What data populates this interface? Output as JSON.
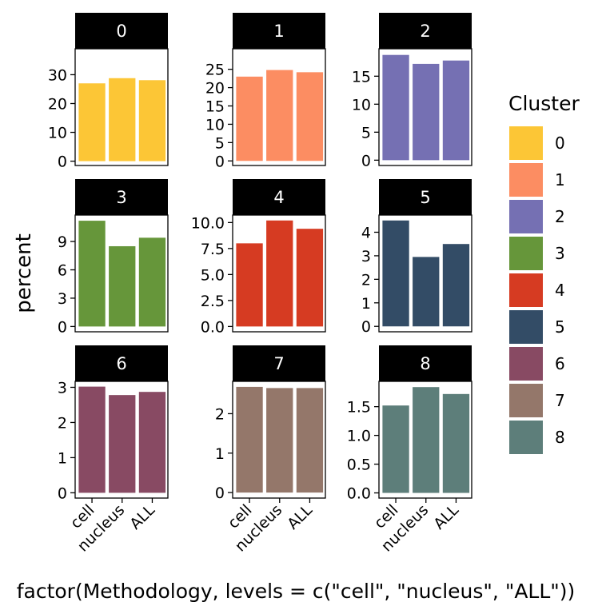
{
  "chart_data": {
    "type": "bar",
    "facet_by": "Cluster",
    "categories": [
      "cell",
      "nucleus",
      "ALL"
    ],
    "ylabel": "percent",
    "xlabel": "factor(Methodology, levels = c(\"cell\", \"nucleus\", \"ALL\"))",
    "legend": {
      "title": "Cluster",
      "position": "right"
    },
    "panels": [
      {
        "label": "0",
        "color": "#FCC636",
        "values": [
          27.0,
          28.8,
          28.1
        ],
        "ticks": [
          0,
          10,
          20,
          30
        ],
        "tick_labels": [
          "0",
          "10",
          "20",
          "30"
        ],
        "ylim": [
          -1.5,
          39
        ]
      },
      {
        "label": "1",
        "color": "#FC8D62",
        "values": [
          23.0,
          24.8,
          24.2
        ],
        "ticks": [
          0,
          5,
          10,
          15,
          20,
          25
        ],
        "tick_labels": [
          "0",
          "5",
          "10",
          "15",
          "20",
          "25"
        ],
        "ylim": [
          -1.25,
          30.6
        ]
      },
      {
        "label": "2",
        "color": "#7570B3",
        "values": [
          18.8,
          17.2,
          17.8
        ],
        "ticks": [
          0,
          5,
          10,
          15
        ],
        "tick_labels": [
          "0",
          "5",
          "10",
          "15"
        ],
        "ylim": [
          -0.95,
          19.9
        ]
      },
      {
        "label": "3",
        "color": "#66963A",
        "values": [
          11.2,
          8.5,
          9.4
        ],
        "ticks": [
          0,
          3,
          6,
          9
        ],
        "tick_labels": [
          "0",
          "3",
          "6",
          "9"
        ],
        "ylim": [
          -0.56,
          11.8
        ]
      },
      {
        "label": "4",
        "color": "#D63B22",
        "values": [
          8.0,
          10.2,
          9.4
        ],
        "ticks": [
          0,
          2.5,
          5,
          7.5,
          10
        ],
        "tick_labels": [
          "0.0",
          "2.5",
          "5.0",
          "7.5",
          "10.0"
        ],
        "ylim": [
          -0.51,
          10.72
        ]
      },
      {
        "label": "5",
        "color": "#334C66",
        "values": [
          4.5,
          2.95,
          3.5
        ],
        "ticks": [
          0,
          1,
          2,
          3,
          4
        ],
        "tick_labels": [
          "0",
          "1",
          "2",
          "3",
          "4"
        ],
        "ylim": [
          -0.23,
          4.73
        ]
      },
      {
        "label": "6",
        "color": "#884A63",
        "values": [
          3.02,
          2.78,
          2.87
        ],
        "ticks": [
          0,
          1,
          2,
          3
        ],
        "tick_labels": [
          "0",
          "1",
          "2",
          "3"
        ],
        "ylim": [
          -0.15,
          3.17
        ]
      },
      {
        "label": "7",
        "color": "#94776A",
        "values": [
          2.68,
          2.65,
          2.65
        ],
        "ticks": [
          0,
          1,
          2
        ],
        "tick_labels": [
          "0",
          "1",
          "2"
        ],
        "ylim": [
          -0.14,
          2.82
        ]
      },
      {
        "label": "8",
        "color": "#5D7E7A",
        "values": [
          1.52,
          1.84,
          1.72
        ],
        "ticks": [
          0,
          0.5,
          1,
          1.5
        ],
        "tick_labels": [
          "0.0",
          "0.5",
          "1.0",
          "1.5"
        ],
        "ylim": [
          -0.09,
          1.94
        ]
      }
    ]
  }
}
